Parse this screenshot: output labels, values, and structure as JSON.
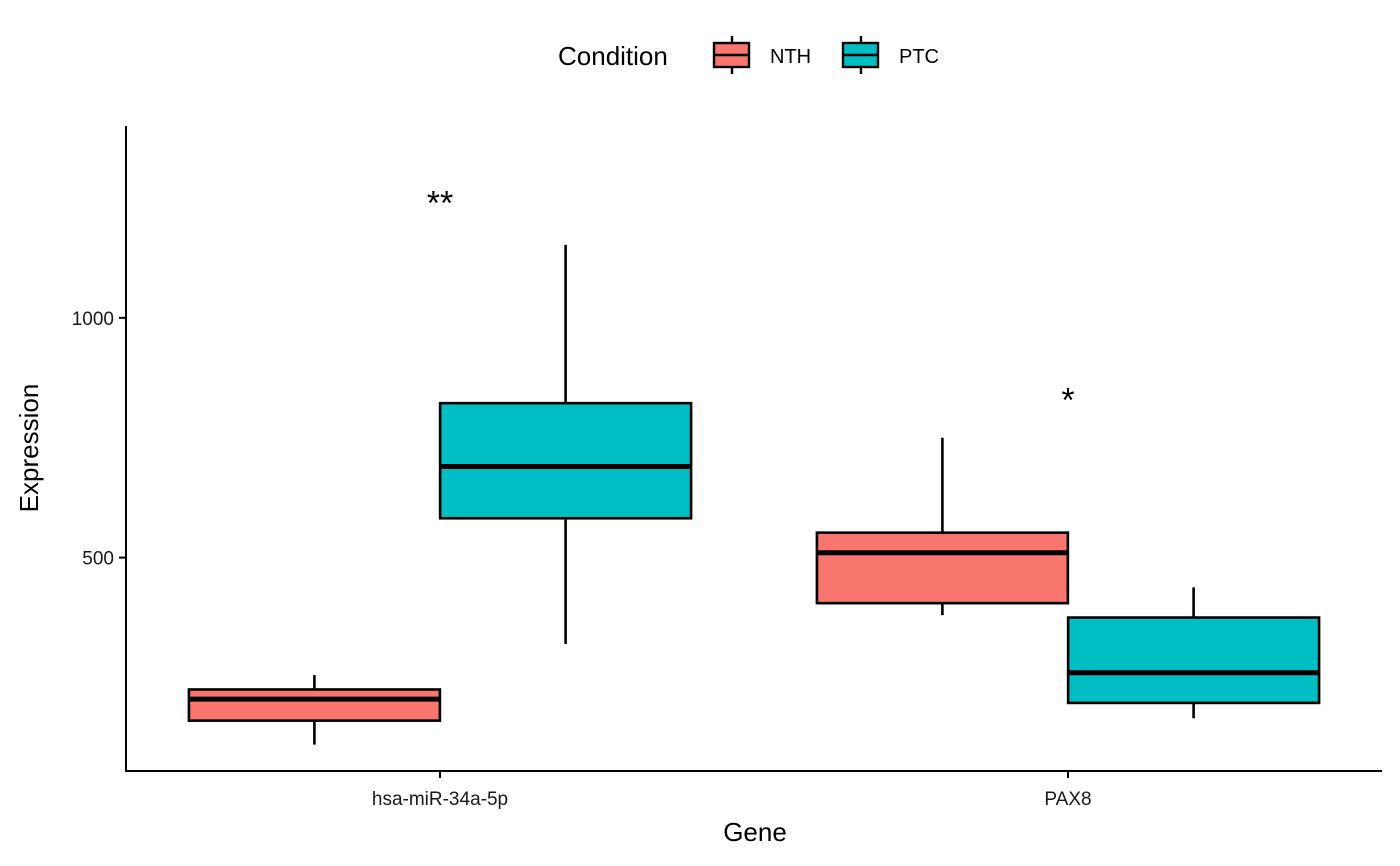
{
  "chart_data": {
    "type": "boxplot",
    "xlabel": "Gene",
    "ylabel": "Expression",
    "ylim": [
      55,
      1400
    ],
    "y_ticks": [
      500,
      1000
    ],
    "categories": [
      "hsa-miR-34a-5p",
      "PAX8"
    ],
    "legend": {
      "title": "Condition",
      "placement": "top",
      "entries": [
        "NTH",
        "PTC"
      ]
    },
    "grid": false,
    "series": [
      {
        "name": "NTH",
        "color": "#F8766D",
        "boxes": [
          {
            "category": "hsa-miR-34a-5p",
            "min": 110,
            "q1": 160,
            "median": 205,
            "q3": 225,
            "max": 255
          },
          {
            "category": "PAX8",
            "min": 380,
            "q1": 405,
            "median": 510,
            "q3": 552,
            "max": 750
          }
        ]
      },
      {
        "name": "PTC",
        "color": "#00BFC4",
        "boxes": [
          {
            "category": "hsa-miR-34a-5p",
            "min": 320,
            "q1": 582,
            "median": 690,
            "q3": 822,
            "max": 1152
          },
          {
            "category": "PAX8",
            "min": 165,
            "q1": 197,
            "median": 260,
            "q3": 375,
            "max": 438
          }
        ]
      }
    ],
    "annotations": [
      {
        "category": "hsa-miR-34a-5p",
        "text": "**",
        "y": 1265
      },
      {
        "category": "PAX8",
        "text": "*",
        "y": 855
      }
    ]
  }
}
